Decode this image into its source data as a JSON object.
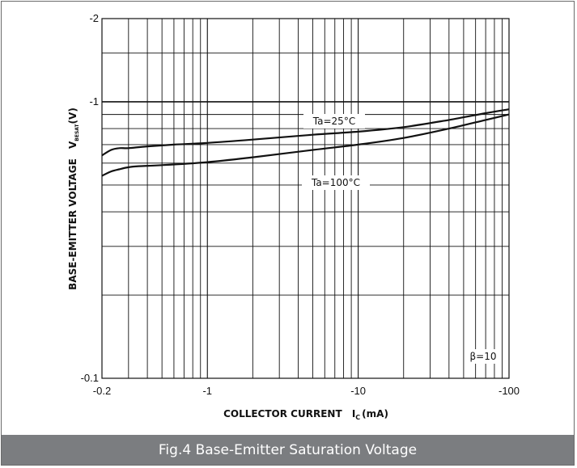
{
  "chart_data": {
    "type": "line",
    "title": "",
    "xlabel": {
      "main": "COLLECTOR CURRENT",
      "symbol": "I",
      "sub": "C",
      "unit": "(mA)"
    },
    "ylabel": {
      "main": "BASE-EMITTER VOLTAGE",
      "symbol": "V",
      "sub": "BESAT",
      "unit": "(V)"
    },
    "x_scale": "log",
    "y_scale": "log",
    "xlim": [
      -0.2,
      -100
    ],
    "ylim": [
      -0.1,
      -2
    ],
    "x_ticks": [
      "-0.2",
      "-1",
      "-10",
      "-100"
    ],
    "y_ticks": [
      "-0.1",
      "-1",
      "-2"
    ],
    "grid": true,
    "series": [
      {
        "name": "Ta=25°C",
        "x": [
          -0.2,
          -0.23,
          -0.26,
          -0.3,
          -0.4,
          -0.6,
          -1,
          -2,
          -5,
          -10,
          -20,
          -40,
          -70,
          -100
        ],
        "y": [
          -0.64,
          -0.67,
          -0.68,
          -0.68,
          -0.69,
          -0.7,
          -0.71,
          -0.73,
          -0.76,
          -0.78,
          -0.81,
          -0.86,
          -0.91,
          -0.94
        ]
      },
      {
        "name": "Ta=100°C",
        "x": [
          -0.2,
          -0.23,
          -0.26,
          -0.3,
          -0.35,
          -0.5,
          -1,
          -2,
          -5,
          -10,
          -20,
          -40,
          -70,
          -100
        ],
        "y": [
          -0.54,
          -0.56,
          -0.57,
          -0.58,
          -0.585,
          -0.59,
          -0.605,
          -0.63,
          -0.67,
          -0.7,
          -0.74,
          -0.8,
          -0.86,
          -0.9
        ]
      }
    ],
    "annotations": [
      "Ta=25°C",
      "Ta=100°C",
      "β=10"
    ]
  },
  "caption": "Fig.4  Base-Emitter Saturation Voltage"
}
